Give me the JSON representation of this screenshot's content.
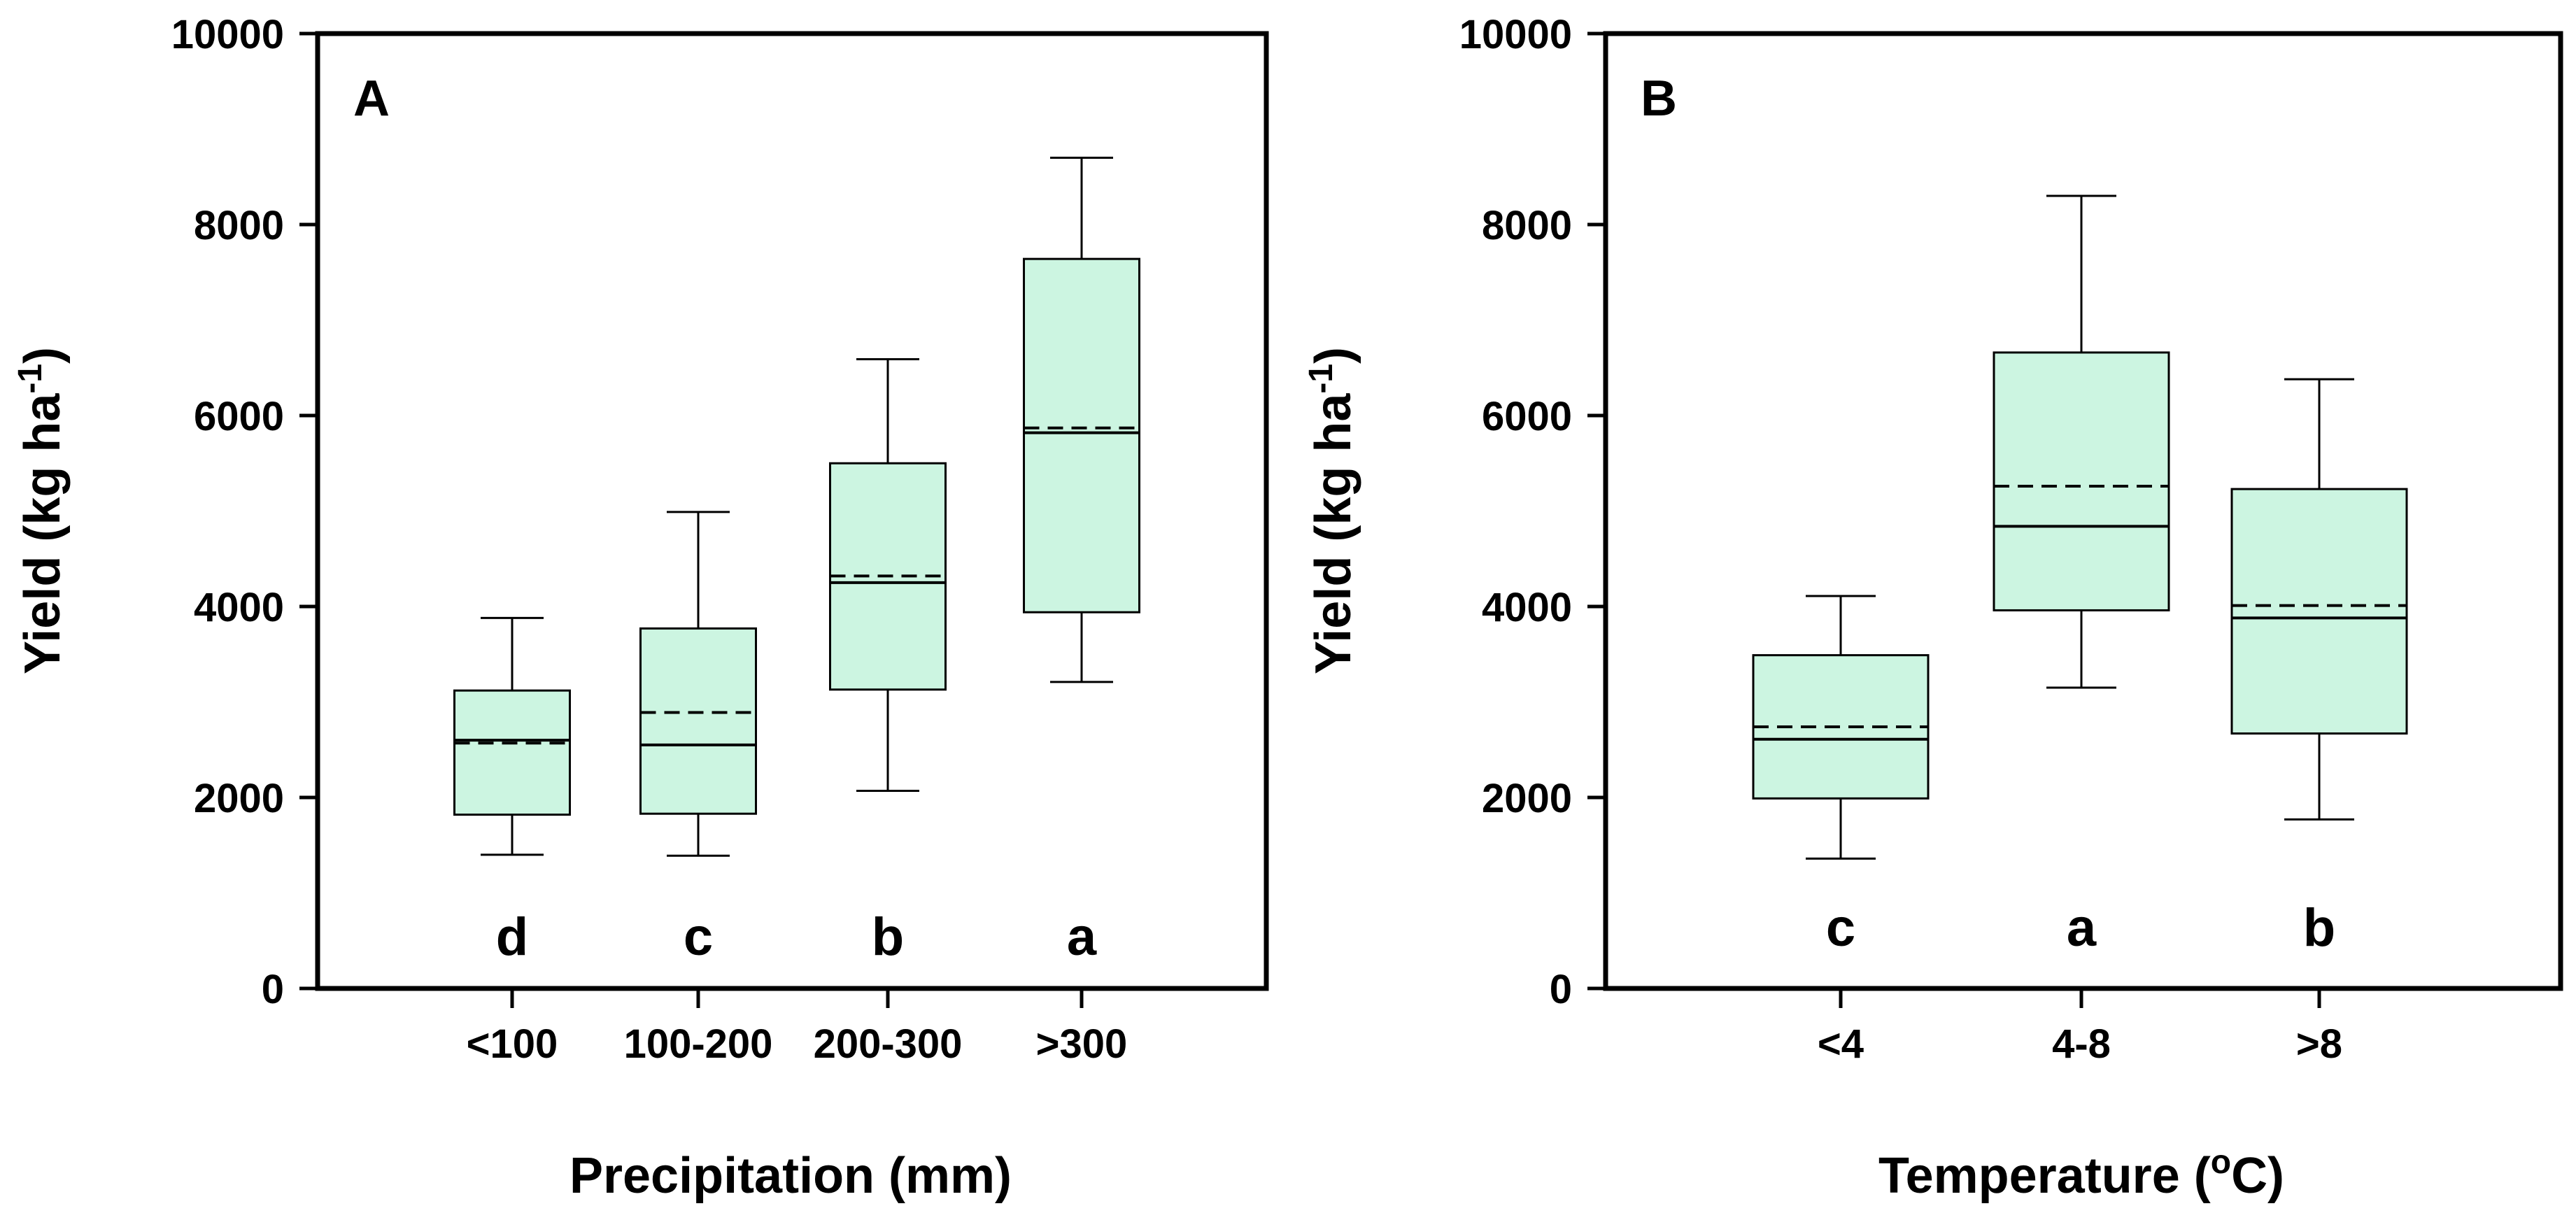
{
  "colors": {
    "box_fill": "#ccf5e1",
    "stroke": "#000000",
    "background": "#ffffff"
  },
  "chart_data": [
    {
      "type": "box",
      "panel_label": "A",
      "xlabel": "Precipitation (mm)",
      "ylabel_main": "Yield (kg ha",
      "ylabel_sup": "-1",
      "ylabel_close": ")",
      "ylim": [
        0,
        10000
      ],
      "yticks": [
        0,
        2000,
        4000,
        6000,
        8000,
        10000
      ],
      "yticklabels": [
        "0",
        "2000",
        "4000",
        "6000",
        "8000",
        "10000"
      ],
      "categories": [
        "<100",
        "100-200",
        "200-300",
        ">300"
      ],
      "letters": [
        "d",
        "c",
        "b",
        "a"
      ],
      "boxes": [
        {
          "whisker_low": 1400,
          "q1": 1820,
          "median": 2600,
          "mean": 2570,
          "q3": 3120,
          "whisker_high": 3880
        },
        {
          "whisker_low": 1390,
          "q1": 1830,
          "median": 2550,
          "mean": 2890,
          "q3": 3770,
          "whisker_high": 4990
        },
        {
          "whisker_low": 2070,
          "q1": 3130,
          "median": 4250,
          "mean": 4320,
          "q3": 5500,
          "whisker_high": 6590
        },
        {
          "whisker_low": 3210,
          "q1": 3940,
          "median": 5820,
          "mean": 5870,
          "q3": 7640,
          "whisker_high": 8700
        }
      ]
    },
    {
      "type": "box",
      "panel_label": "B",
      "xlabel_main": "Temperature (",
      "xlabel_sup": "o",
      "xlabel_close": "C)",
      "ylabel_main": "Yield (kg ha",
      "ylabel_sup": "-1",
      "ylabel_close": ")",
      "ylim": [
        0,
        10000
      ],
      "yticks": [
        0,
        2000,
        4000,
        6000,
        8000,
        10000
      ],
      "yticklabels": [
        "0",
        "2000",
        "4000",
        "6000",
        "8000",
        "10000"
      ],
      "categories": [
        "<4",
        "4-8",
        ">8"
      ],
      "letters": [
        "c",
        "a",
        "b"
      ],
      "boxes": [
        {
          "whisker_low": 1360,
          "q1": 1990,
          "median": 2610,
          "mean": 2740,
          "q3": 3490,
          "whisker_high": 4110
        },
        {
          "whisker_low": 3150,
          "q1": 3960,
          "median": 4840,
          "mean": 5260,
          "q3": 6660,
          "whisker_high": 8300
        },
        {
          "whisker_low": 1770,
          "q1": 2670,
          "median": 3880,
          "mean": 4010,
          "q3": 5230,
          "whisker_high": 6380
        }
      ]
    }
  ]
}
